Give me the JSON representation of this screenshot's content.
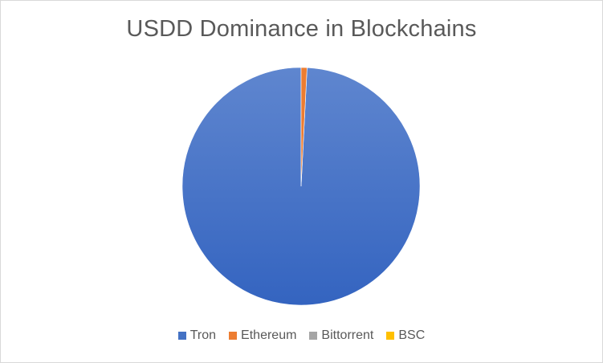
{
  "chart_data": {
    "type": "pie",
    "title": "USDD Dominance in Blockchains",
    "categories": [
      "Tron",
      "Ethereum",
      "Bittorrent",
      "BSC"
    ],
    "values": [
      99.2,
      0.8,
      0.0,
      0.0
    ],
    "colors": [
      "#4472c4",
      "#ed7d31",
      "#a5a5a5",
      "#ffc000"
    ],
    "legend_position": "bottom"
  }
}
